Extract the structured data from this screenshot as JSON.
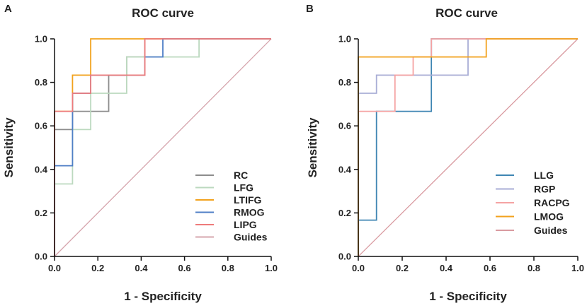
{
  "chart_data": [
    {
      "panel_label": "A",
      "type": "line",
      "title": "ROC curve",
      "xlabel": "1 - Specificity",
      "ylabel": "Sensitivity",
      "xlim": [
        0,
        1
      ],
      "ylim": [
        0,
        1
      ],
      "x_ticks": [
        "0.0",
        "0.2",
        "0.4",
        "0.6",
        "0.8",
        "1.0"
      ],
      "y_ticks": [
        "0.0",
        "0.2",
        "0.4",
        "0.6",
        "0.8",
        "1.0"
      ],
      "legend_position": "bottom-right",
      "series": [
        {
          "name": "RC",
          "color": "#8c8c8c",
          "points": [
            [
              0,
              0
            ],
            [
              0,
              0.583
            ],
            [
              0.083,
              0.583
            ],
            [
              0.083,
              0.667
            ],
            [
              0.25,
              0.667
            ],
            [
              0.25,
              0.833
            ],
            [
              0.333,
              0.833
            ],
            [
              0.333,
              0.917
            ],
            [
              0.417,
              0.917
            ],
            [
              0.417,
              1
            ],
            [
              1,
              1
            ]
          ]
        },
        {
          "name": "LFG",
          "color": "#bcd9bf",
          "points": [
            [
              0,
              0
            ],
            [
              0,
              0.333
            ],
            [
              0.083,
              0.333
            ],
            [
              0.083,
              0.583
            ],
            [
              0.167,
              0.583
            ],
            [
              0.167,
              0.75
            ],
            [
              0.333,
              0.75
            ],
            [
              0.333,
              0.917
            ],
            [
              0.667,
              0.917
            ],
            [
              0.667,
              1
            ],
            [
              1,
              1
            ]
          ]
        },
        {
          "name": "LTIFG",
          "color": "#f2a21d",
          "points": [
            [
              0,
              0
            ],
            [
              0,
              0.667
            ],
            [
              0.083,
              0.667
            ],
            [
              0.083,
              0.833
            ],
            [
              0.167,
              0.833
            ],
            [
              0.167,
              1
            ],
            [
              1,
              1
            ]
          ]
        },
        {
          "name": "RMOG",
          "color": "#4f7fc6",
          "points": [
            [
              0,
              0
            ],
            [
              0,
              0.417
            ],
            [
              0.083,
              0.417
            ],
            [
              0.083,
              0.75
            ],
            [
              0.167,
              0.75
            ],
            [
              0.167,
              0.833
            ],
            [
              0.417,
              0.833
            ],
            [
              0.417,
              0.917
            ],
            [
              0.5,
              0.917
            ],
            [
              0.5,
              1
            ],
            [
              1,
              1
            ]
          ]
        },
        {
          "name": "LIPG",
          "color": "#ee7b7b",
          "points": [
            [
              0,
              0
            ],
            [
              0,
              0.667
            ],
            [
              0.083,
              0.667
            ],
            [
              0.083,
              0.75
            ],
            [
              0.167,
              0.75
            ],
            [
              0.167,
              0.833
            ],
            [
              0.417,
              0.833
            ],
            [
              0.417,
              1
            ],
            [
              1,
              1
            ]
          ]
        },
        {
          "name": "Guides",
          "color": "#d6a5ad",
          "points": [
            [
              0,
              0
            ],
            [
              1,
              1
            ]
          ]
        }
      ]
    },
    {
      "panel_label": "B",
      "type": "line",
      "title": "ROC curve",
      "xlabel": "1 - Specificity",
      "ylabel": "Sensitivity",
      "xlim": [
        0,
        1
      ],
      "ylim": [
        0,
        1
      ],
      "x_ticks": [
        "0.0",
        "0.2",
        "0.4",
        "0.6",
        "0.8",
        "1.0"
      ],
      "y_ticks": [
        "0.0",
        "0.2",
        "0.4",
        "0.6",
        "0.8",
        "1.0"
      ],
      "legend_position": "bottom-right",
      "series": [
        {
          "name": "LLG",
          "color": "#3f86b3",
          "points": [
            [
              0,
              0
            ],
            [
              0,
              0.167
            ],
            [
              0.083,
              0.167
            ],
            [
              0.083,
              0.667
            ],
            [
              0.333,
              0.667
            ],
            [
              0.333,
              1
            ],
            [
              1,
              1
            ]
          ]
        },
        {
          "name": "RGP",
          "color": "#a9aed6",
          "points": [
            [
              0,
              0
            ],
            [
              0,
              0.75
            ],
            [
              0.083,
              0.75
            ],
            [
              0.083,
              0.833
            ],
            [
              0.5,
              0.833
            ],
            [
              0.5,
              0.917
            ],
            [
              0.5,
              1
            ],
            [
              1,
              1
            ]
          ]
        },
        {
          "name": "RACPG",
          "color": "#f5a3a3",
          "points": [
            [
              0,
              0
            ],
            [
              0,
              0.667
            ],
            [
              0.167,
              0.667
            ],
            [
              0.167,
              0.833
            ],
            [
              0.25,
              0.833
            ],
            [
              0.25,
              0.917
            ],
            [
              0.333,
              0.917
            ],
            [
              0.333,
              1
            ],
            [
              1,
              1
            ]
          ]
        },
        {
          "name": "LMOG",
          "color": "#f2a21d",
          "points": [
            [
              0,
              0
            ],
            [
              0,
              0.917
            ],
            [
              0.583,
              0.917
            ],
            [
              0.583,
              1
            ],
            [
              1,
              1
            ]
          ]
        },
        {
          "name": "Guides",
          "color": "#d99aa0",
          "points": [
            [
              0,
              0
            ],
            [
              1,
              1
            ]
          ]
        }
      ]
    }
  ]
}
